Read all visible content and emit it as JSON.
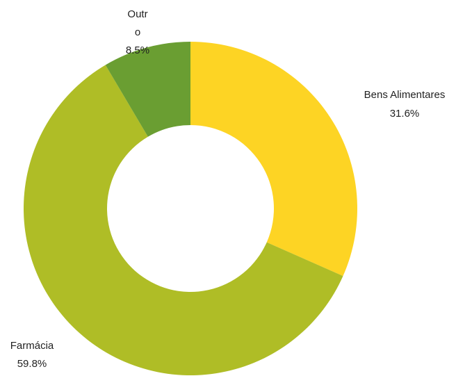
{
  "chart_data": {
    "type": "pie",
    "donut": true,
    "title": "",
    "legend": "none",
    "slices": [
      {
        "label": "Bens Alimentares",
        "value": 31.6,
        "percent_label": "31.6%",
        "color": "#FDD424"
      },
      {
        "label": "Farmácia",
        "value": 59.8,
        "percent_label": "59.8%",
        "color": "#AFBD26"
      },
      {
        "label": "Outro",
        "label_lines": [
          "Outr",
          "o"
        ],
        "value": 8.5,
        "percent_label": "8.5%",
        "color": "#6A9E32"
      }
    ]
  }
}
